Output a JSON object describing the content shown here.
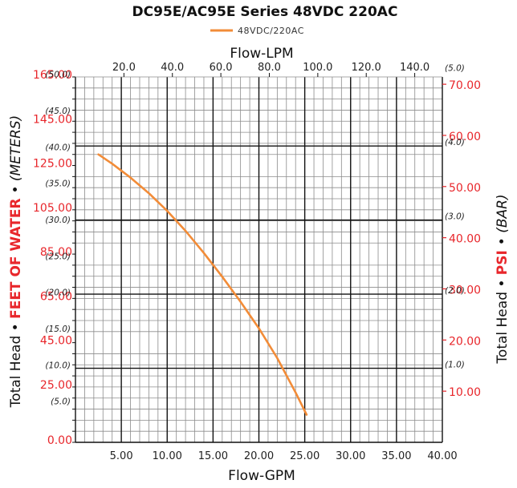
{
  "chart_data": {
    "type": "line",
    "title": "DC95E/AC95E Series 48VDC 220AC",
    "legend": {
      "placement": "top-center",
      "entries": [
        "48VDC/220AC"
      ]
    },
    "series": [
      {
        "name": "48VDC/220AC",
        "color": "#f28c38",
        "x": [
          2.5,
          4.0,
          6.0,
          8.0,
          10.0,
          12.0,
          14.0,
          16.0,
          18.0,
          20.0,
          22.0,
          24.0,
          25.2
        ],
        "y": [
          130,
          125.8,
          119.5,
          112.5,
          104.5,
          95.5,
          85.5,
          74.8,
          63.5,
          51.5,
          38,
          22.5,
          12.5
        ]
      }
    ],
    "x_axis_bottom": {
      "label": "Flow-GPM",
      "range": [
        0,
        40
      ],
      "ticks": [
        5,
        10,
        15,
        20,
        25,
        30,
        35,
        40
      ],
      "tick_labels": [
        "5.00",
        "10.00",
        "15.00",
        "20.00",
        "25.00",
        "30.00",
        "35.00",
        "40.00"
      ]
    },
    "x_axis_top": {
      "label": "Flow-LPM",
      "ticks": [
        20,
        40,
        60,
        80,
        100,
        120,
        140
      ],
      "tick_labels": [
        "20.0",
        "40.0",
        "60.0",
        "80.0",
        "100.0",
        "120.0",
        "140.0"
      ]
    },
    "y_axis_left": {
      "label_parts": [
        "Total Head",
        "•",
        "FEET OF WATER",
        "•",
        "(METERS)"
      ],
      "range": [
        0,
        165
      ],
      "ticks": [
        0,
        25,
        45,
        65,
        85,
        105,
        125,
        145,
        165
      ],
      "tick_labels": [
        "0.00",
        "25.00",
        "45.00",
        "65.00",
        "85.00",
        "105.00",
        "125.00",
        "145.00",
        "165.00"
      ],
      "secondary_ticks": [
        5,
        10,
        15,
        20,
        25,
        30,
        35,
        40,
        45,
        50
      ],
      "secondary_tick_labels": [
        "(5.0)",
        "(10.0)",
        "(15.0)",
        "(20.0)",
        "(25.0)",
        "(30.0)",
        "(35.0)",
        "(40.0)",
        "(45.0)",
        "(50.0)"
      ]
    },
    "y_axis_right": {
      "label_parts": [
        "Total Head",
        "•",
        "PSI",
        "•",
        "(BAR)"
      ],
      "ticks": [
        10,
        20,
        30,
        40,
        50,
        60,
        70
      ],
      "tick_labels": [
        "10.00",
        "20.00",
        "30.00",
        "40.00",
        "50.00",
        "60.00",
        "70.00"
      ],
      "secondary_ticks": [
        1,
        2,
        3,
        4,
        5
      ],
      "secondary_tick_labels": [
        "(1.0)",
        "(2.0)",
        "(3.0)",
        "(4.0)",
        "(5.0)"
      ]
    },
    "grid": true
  }
}
